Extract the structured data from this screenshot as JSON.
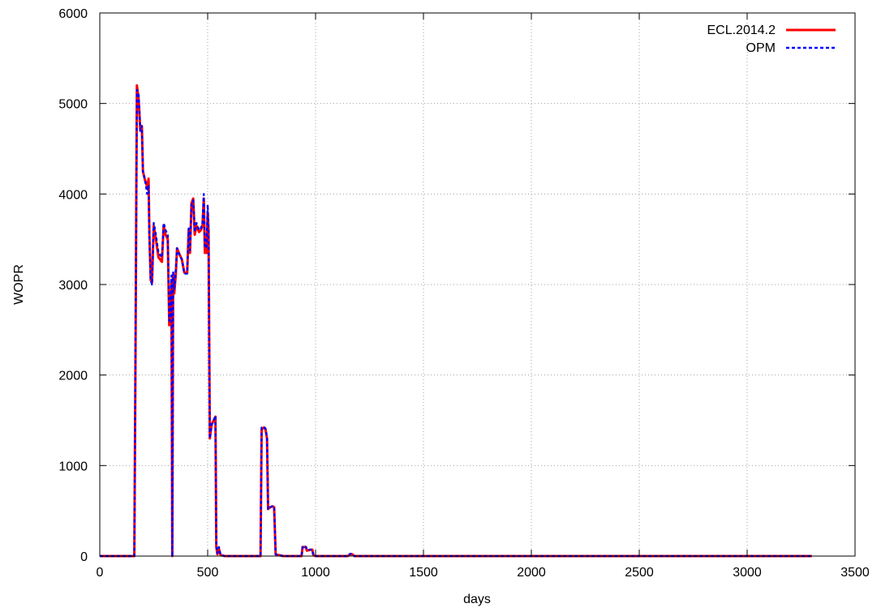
{
  "chart_data": {
    "type": "line",
    "title": "",
    "xlabel": "days",
    "ylabel": "WOPR",
    "xlim": [
      0,
      3500
    ],
    "ylim": [
      0,
      6000
    ],
    "xticks": [
      0,
      500,
      1000,
      1500,
      2000,
      2500,
      3000,
      3500
    ],
    "yticks": [
      0,
      1000,
      2000,
      3000,
      4000,
      5000,
      6000
    ],
    "grid": true,
    "legend_position": "top-right",
    "series": [
      {
        "name": "ECL.2014.2",
        "color": "#ff0000",
        "style": "solid",
        "points": [
          [
            0,
            0
          ],
          [
            160,
            0
          ],
          [
            165,
            2000
          ],
          [
            172,
            5200
          ],
          [
            180,
            5050
          ],
          [
            188,
            4700
          ],
          [
            195,
            4750
          ],
          [
            200,
            4250
          ],
          [
            210,
            4150
          ],
          [
            220,
            4080
          ],
          [
            226,
            4170
          ],
          [
            230,
            3550
          ],
          [
            236,
            3050
          ],
          [
            242,
            3020
          ],
          [
            250,
            3650
          ],
          [
            260,
            3500
          ],
          [
            272,
            3300
          ],
          [
            288,
            3250
          ],
          [
            296,
            3650
          ],
          [
            305,
            3550
          ],
          [
            315,
            3500
          ],
          [
            322,
            2550
          ],
          [
            328,
            2600
          ],
          [
            332,
            3050
          ],
          [
            336,
            0
          ],
          [
            340,
            3100
          ],
          [
            345,
            2900
          ],
          [
            352,
            3100
          ],
          [
            358,
            3400
          ],
          [
            370,
            3330
          ],
          [
            380,
            3280
          ],
          [
            392,
            3130
          ],
          [
            405,
            3130
          ],
          [
            412,
            3600
          ],
          [
            418,
            3350
          ],
          [
            425,
            3900
          ],
          [
            433,
            3950
          ],
          [
            440,
            3550
          ],
          [
            448,
            3650
          ],
          [
            460,
            3580
          ],
          [
            468,
            3600
          ],
          [
            476,
            3650
          ],
          [
            482,
            3950
          ],
          [
            487,
            3350
          ],
          [
            495,
            3350
          ],
          [
            500,
            3800
          ],
          [
            504,
            3600
          ],
          [
            510,
            1300
          ],
          [
            518,
            1450
          ],
          [
            528,
            1500
          ],
          [
            536,
            1540
          ],
          [
            540,
            100
          ],
          [
            545,
            20
          ],
          [
            552,
            80
          ],
          [
            560,
            10
          ],
          [
            580,
            0
          ],
          [
            745,
            0
          ],
          [
            750,
            1400
          ],
          [
            760,
            1420
          ],
          [
            768,
            1400
          ],
          [
            775,
            1300
          ],
          [
            780,
            520
          ],
          [
            790,
            540
          ],
          [
            800,
            550
          ],
          [
            808,
            540
          ],
          [
            815,
            20
          ],
          [
            830,
            10
          ],
          [
            850,
            0
          ],
          [
            935,
            0
          ],
          [
            940,
            100
          ],
          [
            948,
            100
          ],
          [
            955,
            100
          ],
          [
            960,
            60
          ],
          [
            975,
            70
          ],
          [
            985,
            70
          ],
          [
            990,
            10
          ],
          [
            1000,
            0
          ],
          [
            1150,
            0
          ],
          [
            1160,
            20
          ],
          [
            1170,
            20
          ],
          [
            1180,
            0
          ],
          [
            3300,
            0
          ]
        ]
      },
      {
        "name": "OPM",
        "color": "#0000ff",
        "style": "dashed",
        "points": [
          [
            0,
            0
          ],
          [
            160,
            0
          ],
          [
            165,
            2000
          ],
          [
            172,
            5150
          ],
          [
            180,
            5100
          ],
          [
            188,
            4700
          ],
          [
            195,
            4750
          ],
          [
            200,
            4250
          ],
          [
            210,
            4150
          ],
          [
            220,
            4000
          ],
          [
            226,
            4100
          ],
          [
            230,
            3500
          ],
          [
            236,
            3050
          ],
          [
            242,
            3000
          ],
          [
            250,
            3680
          ],
          [
            260,
            3550
          ],
          [
            272,
            3350
          ],
          [
            288,
            3300
          ],
          [
            296,
            3680
          ],
          [
            305,
            3600
          ],
          [
            315,
            3550
          ],
          [
            322,
            2600
          ],
          [
            328,
            2650
          ],
          [
            332,
            3100
          ],
          [
            336,
            0
          ],
          [
            340,
            3150
          ],
          [
            345,
            2950
          ],
          [
            352,
            3150
          ],
          [
            358,
            3400
          ],
          [
            370,
            3320
          ],
          [
            380,
            3280
          ],
          [
            392,
            3120
          ],
          [
            405,
            3120
          ],
          [
            412,
            3620
          ],
          [
            418,
            3380
          ],
          [
            425,
            3880
          ],
          [
            433,
            3930
          ],
          [
            440,
            3580
          ],
          [
            448,
            3680
          ],
          [
            460,
            3600
          ],
          [
            468,
            3620
          ],
          [
            476,
            3680
          ],
          [
            482,
            4000
          ],
          [
            487,
            3400
          ],
          [
            495,
            3420
          ],
          [
            500,
            3880
          ],
          [
            504,
            3620
          ],
          [
            510,
            1300
          ],
          [
            518,
            1450
          ],
          [
            528,
            1500
          ],
          [
            536,
            1550
          ],
          [
            540,
            120
          ],
          [
            545,
            30
          ],
          [
            552,
            100
          ],
          [
            560,
            10
          ],
          [
            580,
            0
          ],
          [
            745,
            0
          ],
          [
            750,
            1420
          ],
          [
            760,
            1430
          ],
          [
            768,
            1410
          ],
          [
            775,
            1310
          ],
          [
            780,
            520
          ],
          [
            790,
            540
          ],
          [
            800,
            550
          ],
          [
            808,
            550
          ],
          [
            815,
            20
          ],
          [
            830,
            10
          ],
          [
            850,
            0
          ],
          [
            935,
            0
          ],
          [
            940,
            110
          ],
          [
            948,
            110
          ],
          [
            955,
            100
          ],
          [
            960,
            70
          ],
          [
            975,
            70
          ],
          [
            985,
            70
          ],
          [
            990,
            10
          ],
          [
            1000,
            0
          ],
          [
            1150,
            0
          ],
          [
            1160,
            25
          ],
          [
            1170,
            25
          ],
          [
            1180,
            0
          ],
          [
            3300,
            0
          ]
        ]
      }
    ]
  }
}
